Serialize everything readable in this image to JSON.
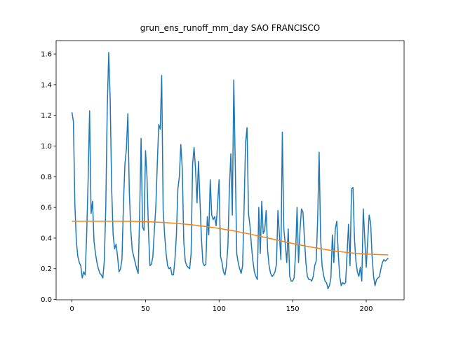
{
  "chart_data": {
    "type": "line",
    "title": "grun_ens_runoff_mm_day SAO FRANCISCO",
    "xlim": [
      -10.75,
      225.75
    ],
    "xticks": [
      0,
      50,
      100,
      150,
      200
    ],
    "ylim": [
      -0.002,
      1.687
    ],
    "yticks": [
      {
        "value": 0,
        "label": "0.0"
      },
      0.2,
      0.4,
      0.6,
      0.8,
      {
        "value": 1,
        "label": "1.0"
      },
      1.2,
      1.4,
      1.6
    ],
    "series": [
      {
        "color": "#1f77b4",
        "x": [
          0,
          1,
          2,
          3,
          4,
          5,
          6,
          7,
          8,
          9,
          10,
          11,
          12,
          13,
          14,
          15,
          16,
          17,
          18,
          19,
          20,
          21,
          22,
          23,
          24,
          25,
          26,
          27,
          28,
          29,
          30,
          31,
          32,
          33,
          34,
          35,
          36,
          37,
          38,
          39,
          40,
          41,
          42,
          43,
          44,
          45,
          46,
          47,
          48,
          49,
          50,
          51,
          52,
          53,
          54,
          55,
          56,
          57,
          58,
          59,
          60,
          61,
          62,
          63,
          64,
          65,
          66,
          67,
          68,
          69,
          70,
          71,
          72,
          73,
          74,
          75,
          76,
          77,
          78,
          79,
          80,
          81,
          82,
          83,
          84,
          85,
          86,
          87,
          88,
          89,
          90,
          91,
          92,
          93,
          94,
          95,
          96,
          97,
          98,
          99,
          100,
          101,
          102,
          103,
          104,
          105,
          106,
          107,
          108,
          109,
          110,
          111,
          112,
          113,
          114,
          115,
          116,
          117,
          118,
          119,
          120,
          121,
          122,
          123,
          124,
          125,
          126,
          127,
          128,
          129,
          130,
          131,
          132,
          133,
          134,
          135,
          136,
          137,
          138,
          139,
          140,
          141,
          142,
          143,
          144,
          145,
          146,
          147,
          148,
          149,
          150,
          151,
          152,
          153,
          154,
          155,
          156,
          157,
          158,
          159,
          160,
          161,
          162,
          163,
          164,
          165,
          166,
          167,
          168,
          169,
          170,
          171,
          172,
          173,
          174,
          175,
          176,
          177,
          178,
          179,
          180,
          181,
          182,
          183,
          184,
          185,
          186,
          187,
          188,
          189,
          190,
          191,
          192,
          193,
          194,
          195,
          196,
          197,
          198,
          199,
          200,
          201,
          202,
          203,
          204,
          205,
          206,
          207,
          208,
          209,
          210,
          211,
          212,
          213,
          214,
          215
        ],
        "values": [
          1.22,
          1.16,
          0.62,
          0.38,
          0.28,
          0.24,
          0.22,
          0.14,
          0.18,
          0.16,
          0.42,
          0.78,
          1.23,
          0.56,
          0.64,
          0.38,
          0.3,
          0.24,
          0.2,
          0.17,
          0.16,
          0.14,
          0.25,
          0.6,
          1.25,
          1.61,
          1.3,
          0.72,
          0.42,
          0.33,
          0.36,
          0.28,
          0.18,
          0.2,
          0.26,
          0.62,
          0.88,
          0.98,
          1.21,
          0.7,
          0.45,
          0.32,
          0.28,
          0.24,
          0.2,
          0.17,
          0.55,
          1.05,
          0.47,
          0.45,
          0.97,
          0.8,
          0.45,
          0.22,
          0.23,
          0.28,
          0.45,
          0.6,
          0.88,
          1.14,
          1.11,
          1.46,
          0.58,
          0.42,
          0.3,
          0.22,
          0.2,
          0.21,
          0.16,
          0.16,
          0.26,
          0.42,
          0.72,
          0.8,
          1.01,
          0.85,
          0.38,
          0.25,
          0.22,
          0.21,
          0.2,
          0.3,
          0.88,
          0.99,
          0.85,
          0.63,
          0.9,
          0.65,
          0.4,
          0.24,
          0.22,
          0.23,
          0.54,
          0.42,
          0.78,
          0.55,
          0.52,
          0.54,
          0.48,
          0.62,
          0.78,
          0.28,
          0.24,
          0.18,
          0.16,
          0.22,
          0.35,
          0.72,
          0.95,
          0.55,
          1.43,
          0.88,
          0.3,
          0.24,
          0.2,
          0.17,
          0.22,
          0.6,
          1.02,
          1.12,
          0.56,
          0.48,
          0.35,
          0.25,
          0.18,
          0.15,
          0.13,
          0.6,
          0.3,
          0.64,
          0.43,
          0.45,
          0.58,
          0.32,
          0.22,
          0.17,
          0.15,
          0.16,
          0.18,
          0.23,
          0.58,
          0.42,
          0.26,
          1.09,
          0.46,
          0.36,
          0.24,
          0.46,
          0.15,
          0.12,
          0.12,
          0.14,
          0.3,
          0.6,
          0.24,
          0.45,
          0.59,
          0.57,
          0.4,
          0.24,
          0.15,
          0.13,
          0.13,
          0.12,
          0.15,
          0.22,
          0.25,
          0.52,
          0.96,
          0.4,
          0.22,
          0.16,
          0.12,
          0.11,
          0.07,
          0.09,
          0.14,
          0.42,
          0.24,
          0.46,
          0.51,
          0.3,
          0.15,
          0.09,
          0.11,
          0.1,
          0.11,
          0.3,
          0.49,
          0.22,
          0.72,
          0.73,
          0.4,
          0.25,
          0.18,
          0.15,
          0.21,
          0.12,
          0.59,
          0.4,
          0.21,
          0.38,
          0.55,
          0.5,
          0.28,
          0.15,
          0.09,
          0.13,
          0.14,
          0.15,
          0.2,
          0.24,
          0.26,
          0.25,
          0.26,
          0.27
        ]
      },
      {
        "color": "#ff7f0e",
        "x": [
          0,
          10,
          20,
          30,
          40,
          50,
          60,
          70,
          80,
          90,
          100,
          110,
          120,
          130,
          140,
          150,
          160,
          170,
          180,
          190,
          200,
          210,
          215
        ],
        "values": [
          0.51,
          0.51,
          0.51,
          0.51,
          0.509,
          0.507,
          0.503,
          0.497,
          0.488,
          0.477,
          0.463,
          0.447,
          0.428,
          0.407,
          0.386,
          0.365,
          0.346,
          0.329,
          0.314,
          0.303,
          0.296,
          0.292,
          0.291
        ]
      }
    ]
  }
}
